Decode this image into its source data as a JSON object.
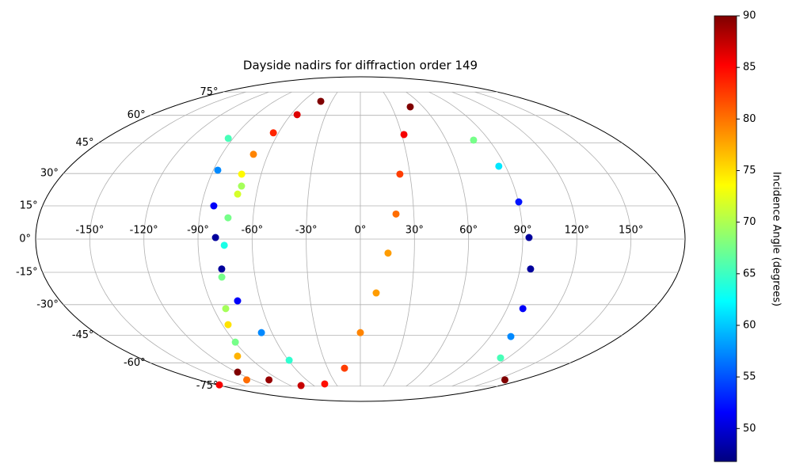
{
  "chart_data": {
    "type": "scatter",
    "projection": "mollweide",
    "title": "Dayside nadirs for diffraction order 149",
    "grid": true,
    "xlim": [
      -180,
      180
    ],
    "ylim": [
      -90,
      90
    ],
    "xticks": [
      {
        "value": -150,
        "label": "-150°"
      },
      {
        "value": -120,
        "label": "-120°"
      },
      {
        "value": -90,
        "label": "-90°"
      },
      {
        "value": -60,
        "label": "-60°"
      },
      {
        "value": -30,
        "label": "-30°"
      },
      {
        "value": 0,
        "label": "0°"
      },
      {
        "value": 30,
        "label": "30°"
      },
      {
        "value": 60,
        "label": "60°"
      },
      {
        "value": 90,
        "label": "90°"
      },
      {
        "value": 120,
        "label": "120°"
      },
      {
        "value": 150,
        "label": "150°"
      }
    ],
    "yticks": [
      {
        "value": -75,
        "label": "-75°"
      },
      {
        "value": -60,
        "label": "-60°"
      },
      {
        "value": -45,
        "label": "-45°"
      },
      {
        "value": -30,
        "label": "-30°"
      },
      {
        "value": -15,
        "label": "-15°"
      },
      {
        "value": 0,
        "label": "0°"
      },
      {
        "value": 15,
        "label": "15°"
      },
      {
        "value": 30,
        "label": "30°"
      },
      {
        "value": 45,
        "label": "45°"
      },
      {
        "value": 60,
        "label": "60°"
      },
      {
        "value": 75,
        "label": "75°"
      }
    ],
    "x": [
      -41.5,
      -54.6,
      -63.8,
      -69.5,
      -71.8,
      -69.7,
      -93.4,
      -87.3,
      -83,
      -80.3,
      -78.2,
      -73.6,
      -67.1,
      -59.3,
      -70.8,
      -74,
      -75.5,
      -79,
      -82.6,
      -89.7,
      -86.3,
      -98.3,
      -126.6,
      -178,
      -118.8,
      -101.8,
      -76.4,
      -43.8,
      -14.5,
      0,
      9.3,
      15.4,
      20,
      23.9,
      31.6,
      47.7,
      79.2,
      85.9,
      90.2,
      93.5,
      96,
      99.7,
      104.3,
      114.1,
      161
    ],
    "y": [
      68.6,
      60.4,
      50.3,
      39.3,
      29.7,
      24.1,
      47.4,
      31.6,
      15,
      0.7,
      -13.5,
      -28.2,
      -43.7,
      -58.5,
      20.4,
      9.6,
      -2.8,
      -17.2,
      -31.9,
      -48.6,
      -39.7,
      -56.2,
      -70.6,
      -74.1,
      -65.6,
      -70.6,
      -74.6,
      -73.4,
      -63.2,
      -43.7,
      -24.5,
      -6.3,
      11.3,
      29.7,
      49.4,
      65.1,
      46.5,
      33.5,
      16.8,
      0.7,
      -13.5,
      -31.9,
      -45.7,
      -57.2,
      -70.6
    ],
    "values": [
      90,
      86,
      83,
      79,
      74,
      70,
      66,
      58,
      52,
      48,
      48,
      52,
      58,
      65,
      72,
      68,
      64,
      68,
      70,
      68,
      75,
      77,
      80,
      85,
      90,
      89,
      87,
      84,
      82,
      79,
      78,
      78,
      80,
      82,
      85,
      90,
      68,
      62,
      53,
      48,
      48,
      52,
      58,
      66,
      90
    ],
    "colorbar": {
      "label": "Incidence Angle (degrees)",
      "colormap": "jet",
      "lim": [
        46.8,
        90
      ],
      "ticks": [
        50,
        55,
        60,
        65,
        70,
        75,
        80,
        85,
        90
      ]
    }
  }
}
